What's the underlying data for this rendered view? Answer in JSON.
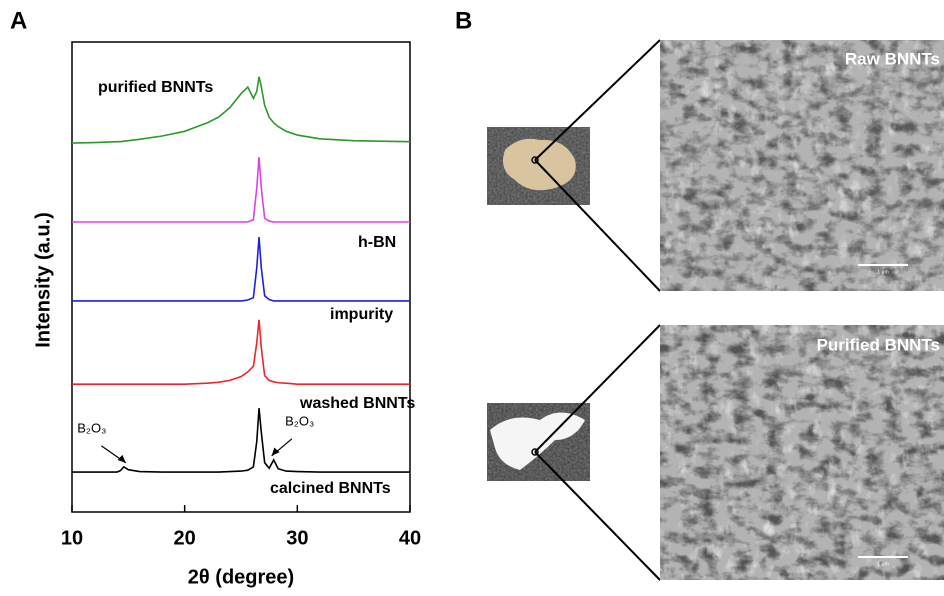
{
  "chart_data": {
    "type": "line",
    "panel_label": "A",
    "xlabel": "2θ (degree)",
    "ylabel": "Intensity (a.u.)",
    "xlim": [
      10,
      40
    ],
    "xticks": [
      10,
      20,
      30,
      40
    ],
    "ylim": [
      0,
      100
    ],
    "x": [
      10,
      12,
      14,
      14.3,
      14.6,
      15,
      16,
      18,
      20,
      22,
      23,
      24,
      25,
      25.6,
      26.1,
      26.4,
      26.6,
      26.8,
      27.1,
      27.5,
      27.9,
      28.3,
      29,
      30,
      32,
      35,
      40
    ],
    "series": [
      {
        "name": "calcined BNNTs",
        "color": "#000000",
        "values": [
          8.5,
          8.5,
          8.5,
          8.8,
          9.6,
          9.0,
          8.6,
          8.5,
          8.5,
          8.5,
          8.5,
          8.6,
          8.7,
          8.9,
          9.6,
          15,
          22.1,
          17,
          10.5,
          9.3,
          11.1,
          9.2,
          8.7,
          8.6,
          8.5,
          8.5,
          8.5
        ]
      },
      {
        "name": "washed BNNTs",
        "color": "#e8262b",
        "values": [
          27.2,
          27.2,
          27.2,
          27.2,
          27.2,
          27.2,
          27.2,
          27.2,
          27.2,
          27.4,
          27.6,
          28.0,
          28.8,
          29.8,
          31,
          36,
          40.9,
          35,
          29,
          28,
          27.7,
          27.5,
          27.4,
          27.2,
          27.2,
          27.2,
          27.2
        ]
      },
      {
        "name": "impurity",
        "color": "#1f1fe0",
        "values": [
          44.9,
          44.9,
          44.9,
          44.9,
          44.9,
          44.9,
          44.9,
          44.9,
          44.9,
          44.9,
          44.9,
          44.9,
          44.9,
          45.1,
          45.6,
          52,
          58.5,
          52,
          46,
          45.2,
          44.9,
          44.9,
          44.9,
          44.9,
          44.9,
          44.9,
          44.9
        ]
      },
      {
        "name": "h-BN",
        "color": "#e040e0",
        "values": [
          61.7,
          61.7,
          61.7,
          61.7,
          61.7,
          61.7,
          61.7,
          61.7,
          61.7,
          61.7,
          61.7,
          61.7,
          61.7,
          61.7,
          62.2,
          69,
          75.5,
          69,
          62.5,
          61.9,
          61.7,
          61.7,
          61.7,
          61.7,
          61.7,
          61.7,
          61.7
        ]
      },
      {
        "name": "purified BNNTs",
        "color": "#2a9a2a",
        "values": [
          78.5,
          78.6,
          78.8,
          78.8,
          78.9,
          79,
          79.3,
          80,
          81,
          82.8,
          84,
          86,
          89,
          90.4,
          88,
          89.5,
          92.6,
          90.5,
          86.5,
          84,
          82.8,
          82,
          81,
          80.2,
          79.4,
          79,
          78.8
        ]
      }
    ],
    "annotations": [
      {
        "text": "B₂O₃",
        "x": 14.6,
        "y": 9.6
      },
      {
        "text": "B₂O₃",
        "x": 27.9,
        "y": 11.1
      }
    ]
  },
  "panel_b": {
    "label": "B",
    "images": [
      {
        "label": "Raw BNNTs",
        "scale": "1 μm"
      },
      {
        "label": "Purified BNNTs",
        "scale": "1 μm"
      }
    ]
  }
}
